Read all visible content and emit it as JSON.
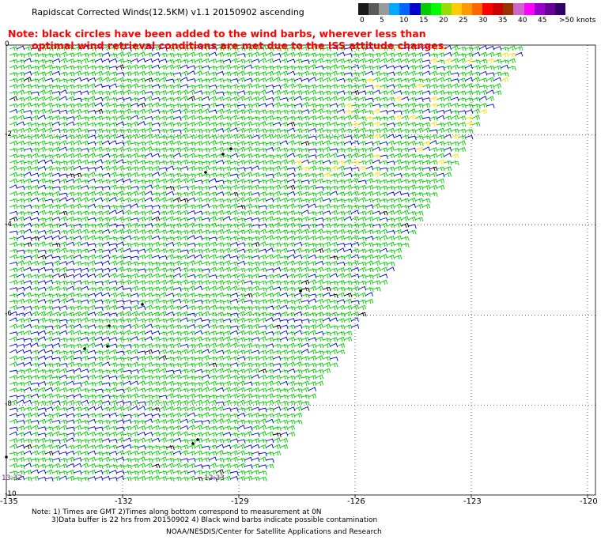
{
  "header": {
    "title": "Rapidscat Corrected Winds(12.5KM) v1.1 20150902 ascending",
    "note_line1": "Note: black circles have been added to the wind barbs, wherever less than",
    "note_line2": "optimal wind retrieval conditions are met due to the ISS attitude changes."
  },
  "colorbar": {
    "unit_label": ">50 knots",
    "ticks": [
      "0",
      "5",
      "10",
      "15",
      "20",
      "25",
      "30",
      "35",
      "40",
      "45"
    ],
    "colors": [
      "#1a1a1a",
      "#5a5a5a",
      "#9a9a9a",
      "#00aaff",
      "#0066ff",
      "#0000cc",
      "#00cc00",
      "#00ff00",
      "#99dd00",
      "#ffcc00",
      "#ff9900",
      "#ff6600",
      "#ff0000",
      "#cc0000",
      "#993300",
      "#cc66cc",
      "#ff00ff",
      "#9900cc",
      "#660099",
      "#330066"
    ]
  },
  "map": {
    "x_ticks": [
      "-135",
      "-132",
      "-129",
      "-126",
      "-123",
      "-120"
    ],
    "x_values": [
      -135,
      -132,
      -129,
      -126,
      -123,
      -120
    ],
    "y_ticks": [
      "0",
      "-2",
      "-4",
      "-6",
      "-8",
      "-10"
    ],
    "y_values": [
      0,
      -2,
      -4,
      -6,
      -8,
      -10
    ],
    "lon_range": [
      -135,
      -120
    ],
    "lat_range": [
      -10,
      0.2
    ],
    "time_labels": [
      "13:32",
      "13:33"
    ],
    "barb_colors": {
      "calm": "#0000cc",
      "moderate": "#00cc00",
      "fresh": "#ffdd00",
      "contaminated": "#000000"
    }
  },
  "footer": {
    "line1": "Note: 1) Times are GMT 2)Times along bottom correspond to measurement at 0N",
    "line2": "3)Data buffer is 22 hrs from 20150902 4) Black wind barbs indicate possible contamination",
    "credit": "NOAA/NESDIS/Center for Satellite Applications and Research"
  }
}
